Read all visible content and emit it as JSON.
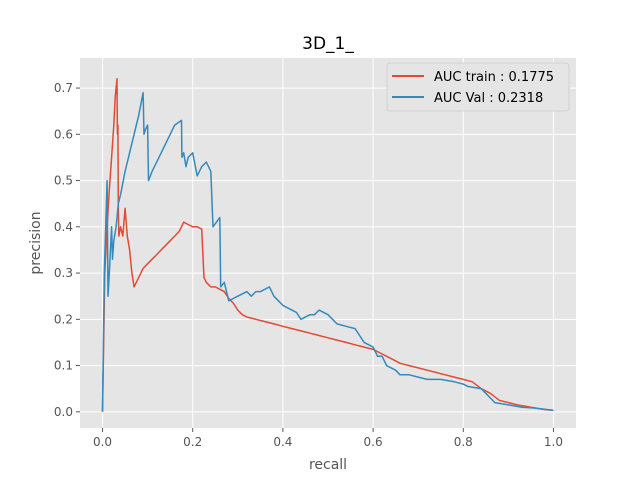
{
  "chart_data": {
    "type": "line",
    "title": "3D_1_",
    "xlabel": "recall",
    "ylabel": "precision",
    "xlim": [
      -0.05,
      1.05
    ],
    "ylim": [
      -0.035,
      0.765
    ],
    "xticks": [
      0.0,
      0.2,
      0.4,
      0.6,
      0.8,
      1.0
    ],
    "xtick_labels": [
      "0.0",
      "0.2",
      "0.4",
      "0.6",
      "0.8",
      "1.0"
    ],
    "yticks": [
      0.0,
      0.1,
      0.2,
      0.3,
      0.4,
      0.5,
      0.6,
      0.7
    ],
    "ytick_labels": [
      "0.0",
      "0.1",
      "0.2",
      "0.3",
      "0.4",
      "0.5",
      "0.6",
      "0.7"
    ],
    "grid": true,
    "legend_position": "top-right",
    "series": [
      {
        "name": "AUC train : 0.1775",
        "color": "#e24a33",
        "points": [
          [
            0.0,
            0.0
          ],
          [
            0.005,
            0.3
          ],
          [
            0.01,
            0.4
          ],
          [
            0.015,
            0.48
          ],
          [
            0.02,
            0.55
          ],
          [
            0.025,
            0.62
          ],
          [
            0.028,
            0.68
          ],
          [
            0.032,
            0.72
          ],
          [
            0.033,
            0.6
          ],
          [
            0.034,
            0.62
          ],
          [
            0.035,
            0.45
          ],
          [
            0.036,
            0.38
          ],
          [
            0.04,
            0.4
          ],
          [
            0.045,
            0.38
          ],
          [
            0.05,
            0.44
          ],
          [
            0.055,
            0.38
          ],
          [
            0.06,
            0.35
          ],
          [
            0.065,
            0.3
          ],
          [
            0.07,
            0.27
          ],
          [
            0.08,
            0.29
          ],
          [
            0.09,
            0.31
          ],
          [
            0.1,
            0.32
          ],
          [
            0.11,
            0.33
          ],
          [
            0.12,
            0.34
          ],
          [
            0.13,
            0.35
          ],
          [
            0.14,
            0.36
          ],
          [
            0.15,
            0.37
          ],
          [
            0.16,
            0.38
          ],
          [
            0.17,
            0.39
          ],
          [
            0.175,
            0.4
          ],
          [
            0.18,
            0.41
          ],
          [
            0.19,
            0.405
          ],
          [
            0.2,
            0.4
          ],
          [
            0.21,
            0.4
          ],
          [
            0.22,
            0.395
          ],
          [
            0.225,
            0.29
          ],
          [
            0.23,
            0.28
          ],
          [
            0.24,
            0.27
          ],
          [
            0.25,
            0.27
          ],
          [
            0.26,
            0.265
          ],
          [
            0.27,
            0.26
          ],
          [
            0.28,
            0.245
          ],
          [
            0.29,
            0.235
          ],
          [
            0.3,
            0.22
          ],
          [
            0.31,
            0.21
          ],
          [
            0.32,
            0.205
          ],
          [
            0.34,
            0.2
          ],
          [
            0.36,
            0.195
          ],
          [
            0.38,
            0.19
          ],
          [
            0.4,
            0.185
          ],
          [
            0.42,
            0.18
          ],
          [
            0.44,
            0.175
          ],
          [
            0.46,
            0.17
          ],
          [
            0.48,
            0.165
          ],
          [
            0.5,
            0.16
          ],
          [
            0.52,
            0.155
          ],
          [
            0.54,
            0.15
          ],
          [
            0.56,
            0.145
          ],
          [
            0.58,
            0.14
          ],
          [
            0.6,
            0.135
          ],
          [
            0.62,
            0.125
          ],
          [
            0.64,
            0.115
          ],
          [
            0.66,
            0.105
          ],
          [
            0.68,
            0.1
          ],
          [
            0.7,
            0.095
          ],
          [
            0.72,
            0.09
          ],
          [
            0.74,
            0.085
          ],
          [
            0.76,
            0.08
          ],
          [
            0.78,
            0.075
          ],
          [
            0.8,
            0.07
          ],
          [
            0.82,
            0.065
          ],
          [
            0.84,
            0.05
          ],
          [
            0.86,
            0.04
          ],
          [
            0.88,
            0.025
          ],
          [
            0.9,
            0.02
          ],
          [
            0.92,
            0.015
          ],
          [
            0.95,
            0.01
          ],
          [
            0.98,
            0.005
          ],
          [
            1.0,
            0.003
          ]
        ]
      },
      {
        "name": "AUC Val : 0.2318",
        "color": "#348abd",
        "points": [
          [
            0.0,
            0.0
          ],
          [
            0.004,
            0.3
          ],
          [
            0.007,
            0.4
          ],
          [
            0.01,
            0.5
          ],
          [
            0.012,
            0.25
          ],
          [
            0.015,
            0.3
          ],
          [
            0.02,
            0.4
          ],
          [
            0.022,
            0.33
          ],
          [
            0.025,
            0.37
          ],
          [
            0.03,
            0.4
          ],
          [
            0.035,
            0.45
          ],
          [
            0.04,
            0.47
          ],
          [
            0.05,
            0.52
          ],
          [
            0.06,
            0.56
          ],
          [
            0.07,
            0.6
          ],
          [
            0.08,
            0.64
          ],
          [
            0.09,
            0.69
          ],
          [
            0.092,
            0.6
          ],
          [
            0.095,
            0.61
          ],
          [
            0.1,
            0.62
          ],
          [
            0.102,
            0.5
          ],
          [
            0.11,
            0.52
          ],
          [
            0.12,
            0.54
          ],
          [
            0.13,
            0.56
          ],
          [
            0.14,
            0.58
          ],
          [
            0.15,
            0.6
          ],
          [
            0.16,
            0.62
          ],
          [
            0.175,
            0.63
          ],
          [
            0.176,
            0.55
          ],
          [
            0.18,
            0.56
          ],
          [
            0.185,
            0.53
          ],
          [
            0.19,
            0.55
          ],
          [
            0.2,
            0.56
          ],
          [
            0.21,
            0.51
          ],
          [
            0.22,
            0.53
          ],
          [
            0.23,
            0.54
          ],
          [
            0.24,
            0.52
          ],
          [
            0.245,
            0.4
          ],
          [
            0.26,
            0.42
          ],
          [
            0.262,
            0.27
          ],
          [
            0.27,
            0.28
          ],
          [
            0.275,
            0.26
          ],
          [
            0.28,
            0.24
          ],
          [
            0.29,
            0.245
          ],
          [
            0.3,
            0.25
          ],
          [
            0.31,
            0.255
          ],
          [
            0.32,
            0.26
          ],
          [
            0.33,
            0.25
          ],
          [
            0.34,
            0.26
          ],
          [
            0.35,
            0.26
          ],
          [
            0.36,
            0.265
          ],
          [
            0.37,
            0.27
          ],
          [
            0.38,
            0.25
          ],
          [
            0.39,
            0.24
          ],
          [
            0.4,
            0.23
          ],
          [
            0.42,
            0.22
          ],
          [
            0.43,
            0.215
          ],
          [
            0.44,
            0.2
          ],
          [
            0.46,
            0.21
          ],
          [
            0.47,
            0.21
          ],
          [
            0.48,
            0.22
          ],
          [
            0.5,
            0.21
          ],
          [
            0.52,
            0.19
          ],
          [
            0.54,
            0.185
          ],
          [
            0.56,
            0.18
          ],
          [
            0.58,
            0.15
          ],
          [
            0.6,
            0.14
          ],
          [
            0.61,
            0.12
          ],
          [
            0.62,
            0.12
          ],
          [
            0.63,
            0.1
          ],
          [
            0.65,
            0.09
          ],
          [
            0.66,
            0.08
          ],
          [
            0.68,
            0.08
          ],
          [
            0.7,
            0.075
          ],
          [
            0.72,
            0.07
          ],
          [
            0.75,
            0.07
          ],
          [
            0.78,
            0.065
          ],
          [
            0.8,
            0.06
          ],
          [
            0.81,
            0.055
          ],
          [
            0.84,
            0.05
          ],
          [
            0.86,
            0.03
          ],
          [
            0.87,
            0.02
          ],
          [
            0.9,
            0.015
          ],
          [
            0.93,
            0.01
          ],
          [
            0.96,
            0.008
          ],
          [
            1.0,
            0.003
          ]
        ]
      }
    ]
  }
}
